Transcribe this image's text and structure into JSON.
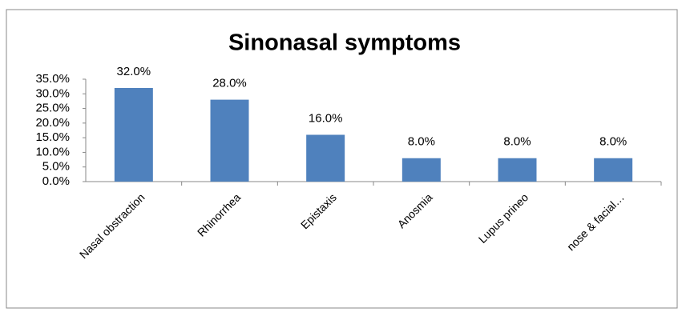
{
  "chart_data": {
    "type": "bar",
    "title": "Sinonasal symptoms",
    "categories": [
      "Nasal obstraction",
      "Rhinorrhea",
      "Epistaxis",
      "Anosmia",
      "Lupus prineo",
      "nose & facial…"
    ],
    "values": [
      32,
      28,
      16,
      8,
      8,
      8
    ],
    "value_labels": [
      "32.0%",
      "28.0%",
      "16.0%",
      "8.0%",
      "8.0%",
      "8.0%"
    ],
    "color": "#4f81bd",
    "ylim": [
      0,
      35
    ],
    "yticks": [
      {
        "value": 0,
        "label": "0.0%"
      },
      {
        "value": 5,
        "label": "5.0%"
      },
      {
        "value": 10,
        "label": "10.0%"
      },
      {
        "value": 15,
        "label": "15.0%"
      },
      {
        "value": 20,
        "label": "20.0%"
      },
      {
        "value": 25,
        "label": "25.0%"
      },
      {
        "value": 30,
        "label": "30.0%"
      },
      {
        "value": 35,
        "label": "35.0%"
      }
    ],
    "grid": false
  }
}
